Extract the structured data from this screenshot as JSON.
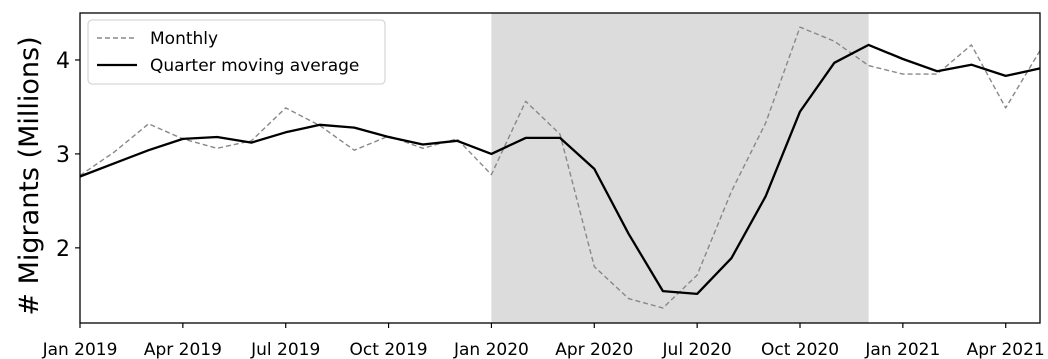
{
  "chart_data": {
    "type": "line",
    "title": "",
    "xlabel": "",
    "ylabel": "# Migrants (Millions)",
    "x": [
      "2019-01",
      "2019-02",
      "2019-03",
      "2019-04",
      "2019-05",
      "2019-06",
      "2019-07",
      "2019-08",
      "2019-09",
      "2019-10",
      "2019-11",
      "2019-12",
      "2020-01",
      "2020-02",
      "2020-03",
      "2020-04",
      "2020-05",
      "2020-06",
      "2020-07",
      "2020-08",
      "2020-09",
      "2020-10",
      "2020-11",
      "2020-12",
      "2021-01",
      "2021-02",
      "2021-03",
      "2021-04",
      "2021-05"
    ],
    "x_tick_labels": [
      "Jan 2019",
      "Apr 2019",
      "Jul 2019",
      "Oct 2019",
      "Jan 2020",
      "Apr 2020",
      "Jul 2020",
      "Oct 2020",
      "Jan 2021",
      "Apr 2021"
    ],
    "x_tick_months": [
      "2019-01",
      "2019-04",
      "2019-07",
      "2019-10",
      "2020-01",
      "2020-04",
      "2020-07",
      "2020-10",
      "2021-01",
      "2021-04"
    ],
    "y_ticks": [
      2,
      3,
      4
    ],
    "ylim": [
      1.2,
      4.5
    ],
    "series": [
      {
        "name": "Monthly",
        "style": "dashed",
        "color": "#888888",
        "values": [
          2.77,
          3.02,
          3.32,
          3.16,
          3.06,
          3.14,
          3.49,
          3.3,
          3.04,
          3.19,
          3.06,
          3.16,
          2.78,
          3.56,
          3.21,
          1.8,
          1.46,
          1.36,
          1.71,
          2.6,
          3.33,
          4.35,
          4.2,
          3.94,
          3.85,
          3.85,
          4.16,
          3.49,
          4.1
        ]
      },
      {
        "name": "Quarter moving average",
        "style": "solid",
        "color": "#000000",
        "values": [
          2.76,
          2.9,
          3.04,
          3.16,
          3.18,
          3.12,
          3.23,
          3.31,
          3.28,
          3.18,
          3.1,
          3.14,
          3.0,
          3.17,
          3.17,
          2.84,
          2.15,
          1.54,
          1.51,
          1.89,
          2.55,
          3.45,
          3.97,
          4.16,
          4.01,
          3.88,
          3.95,
          3.83,
          3.91
        ]
      }
    ],
    "shaded_region": {
      "from": "2020-01",
      "to": "2020-12",
      "color": "#dcdcdc"
    },
    "legend_position": "top-left",
    "grid": false
  }
}
